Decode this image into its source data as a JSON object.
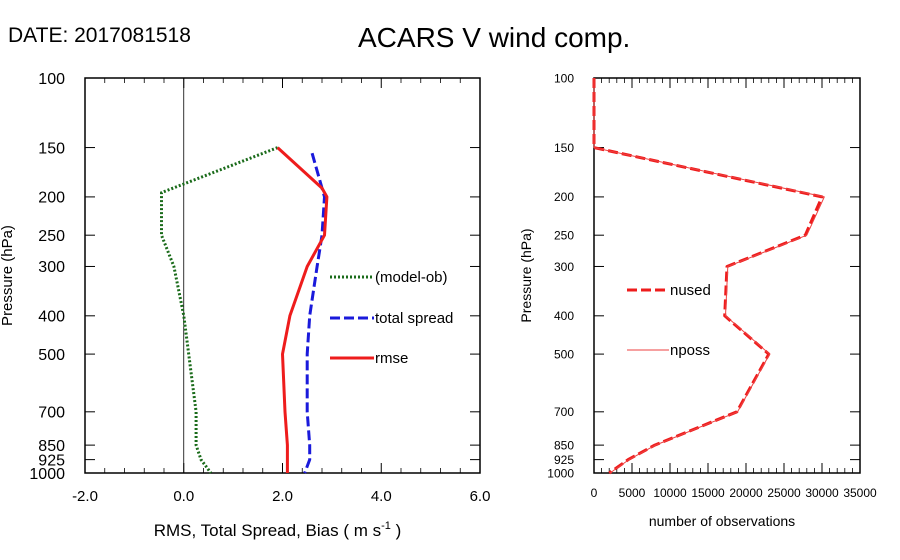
{
  "header": {
    "date_label": "DATE: 2017081518",
    "title": "ACARS V wind comp."
  },
  "colors": {
    "model_ob": "#1a6b1a",
    "total_spread": "#1a1adb",
    "rmse": "#ee1c1c",
    "nused": "#ee1c1c",
    "nposs": "#ee4040",
    "zero_line": "#000000"
  },
  "chart_data": [
    {
      "type": "line",
      "ylabel": "Pressure (hPa)",
      "xlabel_main": "RMS, Total Spread, Bias ( m s",
      "xlabel_sup": "-1",
      "xlabel_end": " )",
      "xlim": [
        -2.0,
        6.0
      ],
      "xticks": [
        "-2.0",
        "0.0",
        "2.0",
        "4.0",
        "6.0"
      ],
      "xtick_values": [
        -2,
        0,
        2,
        4,
        6
      ],
      "ylim": [
        100,
        1000
      ],
      "yscale": "log",
      "yticks": [
        100,
        150,
        200,
        250,
        300,
        400,
        500,
        700,
        850,
        925,
        1000
      ],
      "ytick_labels": [
        "100",
        "150",
        "200",
        "250",
        "300",
        "400",
        "500",
        "700",
        "850",
        "925",
        "1000"
      ],
      "zero_line": 0,
      "series": [
        {
          "name": "(model-ob)",
          "style": "dotted",
          "color": "#1a6b1a",
          "points": [
            [
              1.9,
              150
            ],
            [
              -0.45,
              195
            ],
            [
              -0.45,
              250
            ],
            [
              -0.2,
              300
            ],
            [
              0.0,
              400
            ],
            [
              0.1,
              500
            ],
            [
              0.25,
              700
            ],
            [
              0.25,
              850
            ],
            [
              0.35,
              925
            ],
            [
              0.55,
              1000
            ]
          ]
        },
        {
          "name": "total spread",
          "style": "dashed",
          "color": "#1a1adb",
          "points": [
            [
              2.6,
              155
            ],
            [
              2.85,
              200
            ],
            [
              2.8,
              250
            ],
            [
              2.7,
              300
            ],
            [
              2.55,
              400
            ],
            [
              2.5,
              500
            ],
            [
              2.5,
              700
            ],
            [
              2.55,
              850
            ],
            [
              2.55,
              925
            ],
            [
              2.45,
              1000
            ]
          ]
        },
        {
          "name": "rmse",
          "style": "solid",
          "color": "#ee1c1c",
          "points": [
            [
              1.9,
              150
            ],
            [
              2.8,
              190
            ],
            [
              2.9,
              200
            ],
            [
              2.85,
              250
            ],
            [
              2.5,
              300
            ],
            [
              2.15,
              400
            ],
            [
              2.0,
              500
            ],
            [
              2.05,
              700
            ],
            [
              2.1,
              850
            ],
            [
              2.1,
              925
            ],
            [
              2.1,
              1000
            ]
          ]
        }
      ]
    },
    {
      "type": "line",
      "ylabel": "Pressure (hPa)",
      "xlabel": "number of observations",
      "xlim": [
        0,
        35000
      ],
      "xticks": [
        "0",
        "5000",
        "10000",
        "15000",
        "20000",
        "25000",
        "30000",
        "35000"
      ],
      "xtick_values": [
        0,
        5000,
        10000,
        15000,
        20000,
        25000,
        30000,
        35000
      ],
      "ylim": [
        100,
        1000
      ],
      "yscale": "log",
      "yticks": [
        100,
        150,
        200,
        250,
        300,
        400,
        500,
        700,
        850,
        925,
        1000
      ],
      "ytick_labels": [
        "100",
        "150",
        "200",
        "250",
        "300",
        "400",
        "500",
        "700",
        "850",
        "925",
        "1000"
      ],
      "series": [
        {
          "name": "nused",
          "style": "dashed",
          "color": "#ee1c1c",
          "points": [
            [
              0,
              100
            ],
            [
              0,
              150
            ],
            [
              30000,
              200
            ],
            [
              27800,
              250
            ],
            [
              17500,
              300
            ],
            [
              17200,
              400
            ],
            [
              23000,
              500
            ],
            [
              18800,
              700
            ],
            [
              8000,
              850
            ],
            [
              4500,
              925
            ],
            [
              2000,
              1000
            ]
          ]
        },
        {
          "name": "nposs",
          "style": "solid",
          "color": "#ee4040",
          "points": [
            [
              0,
              100
            ],
            [
              0,
              150
            ],
            [
              30300,
              200
            ],
            [
              28000,
              250
            ],
            [
              17600,
              300
            ],
            [
              17300,
              400
            ],
            [
              23100,
              500
            ],
            [
              18900,
              700
            ],
            [
              8100,
              850
            ],
            [
              4600,
              925
            ],
            [
              2100,
              1000
            ]
          ]
        }
      ]
    }
  ]
}
